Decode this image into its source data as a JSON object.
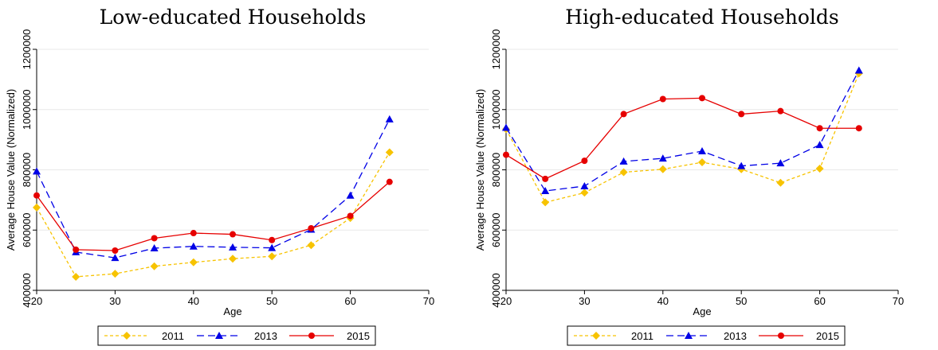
{
  "colors": {
    "s2011": "#f7c300",
    "s2013": "#0000e6",
    "s2015": "#e60000",
    "grid": "#e8e8e8"
  },
  "chart_data": [
    {
      "type": "line",
      "title": "Low-educated Households",
      "xlabel": "Age",
      "ylabel": "Average House Value (Normalized)",
      "xlim": [
        20,
        70
      ],
      "ylim": [
        400000,
        1200000
      ],
      "xticks": [
        20,
        30,
        40,
        50,
        60,
        70
      ],
      "yticks": [
        400000,
        600000,
        800000,
        1000000,
        1200000
      ],
      "x": [
        20,
        25,
        30,
        35,
        40,
        45,
        50,
        55,
        60,
        65
      ],
      "grid": true,
      "legend_position": "bottom",
      "series": [
        {
          "name": "2011",
          "marker": "diamond",
          "dash": "short",
          "values": [
            675000,
            445000,
            455000,
            480000,
            493000,
            505000,
            513000,
            550000,
            640000,
            858000
          ]
        },
        {
          "name": "2013",
          "marker": "triangle",
          "dash": "long",
          "values": [
            795000,
            527000,
            508000,
            540000,
            546000,
            543000,
            541000,
            602000,
            715000,
            968000
          ]
        },
        {
          "name": "2015",
          "marker": "circle",
          "dash": "solid",
          "values": [
            715000,
            535000,
            532000,
            573000,
            590000,
            586000,
            567000,
            606000,
            647000,
            760000
          ]
        }
      ]
    },
    {
      "type": "line",
      "title": "High-educated Households",
      "xlabel": "Age",
      "ylabel": "Average House Value (Normalized)",
      "xlim": [
        20,
        70
      ],
      "ylim": [
        400000,
        1200000
      ],
      "xticks": [
        20,
        30,
        40,
        50,
        60,
        70
      ],
      "yticks": [
        400000,
        600000,
        800000,
        1000000,
        1200000
      ],
      "x": [
        20,
        25,
        30,
        35,
        40,
        45,
        50,
        55,
        60,
        65
      ],
      "grid": true,
      "legend_position": "bottom",
      "series": [
        {
          "name": "2011",
          "marker": "diamond",
          "dash": "short",
          "values": [
            935000,
            692000,
            724000,
            792000,
            802000,
            825000,
            802000,
            757000,
            804000,
            1120000
          ]
        },
        {
          "name": "2013",
          "marker": "triangle",
          "dash": "long",
          "values": [
            940000,
            730000,
            746000,
            828000,
            838000,
            862000,
            813000,
            822000,
            883000,
            1130000
          ]
        },
        {
          "name": "2015",
          "marker": "circle",
          "dash": "solid",
          "values": [
            850000,
            770000,
            830000,
            985000,
            1035000,
            1038000,
            985000,
            995000,
            938000,
            938000
          ]
        }
      ]
    }
  ]
}
